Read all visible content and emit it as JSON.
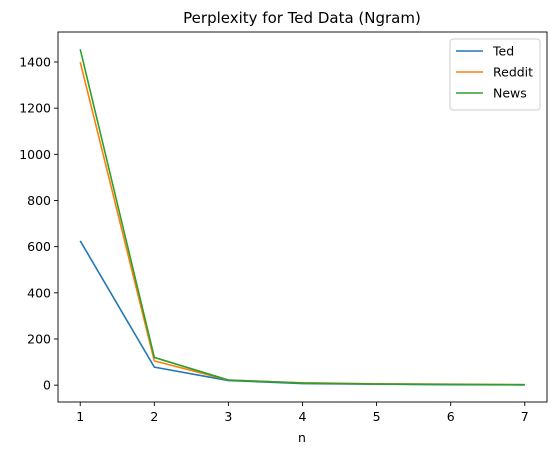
{
  "chart_data": {
    "type": "line",
    "title": "Perplexity for Ted Data (Ngram)",
    "xlabel": "n",
    "ylabel": "",
    "x": [
      1,
      2,
      3,
      4,
      5,
      6,
      7
    ],
    "xticks": [
      1,
      2,
      3,
      4,
      5,
      6,
      7
    ],
    "yticks": [
      0,
      200,
      400,
      600,
      800,
      1000,
      1200,
      1400
    ],
    "xlim": [
      0.7,
      7.3
    ],
    "ylim": [
      -73,
      1530
    ],
    "grid": false,
    "legend_position": "top-right",
    "series": [
      {
        "name": "Ted",
        "color": "#1f77b4",
        "values": [
          625,
          78,
          20,
          7,
          4,
          2,
          1
        ]
      },
      {
        "name": "Reddit",
        "color": "#ff7f0e",
        "values": [
          1400,
          105,
          22,
          10,
          6,
          4,
          2
        ]
      },
      {
        "name": "News",
        "color": "#2ca02c",
        "values": [
          1455,
          120,
          22,
          9,
          5,
          3,
          2
        ]
      }
    ]
  }
}
